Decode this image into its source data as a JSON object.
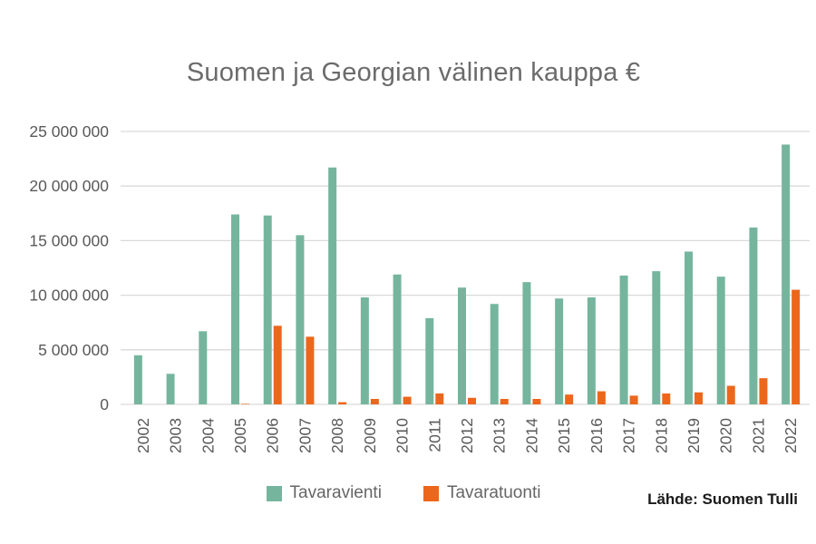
{
  "title": "Suomen ja Georgian välinen kauppa €",
  "source": "Lähde: Suomen Tulli",
  "colors": {
    "export_green": "#75b59e",
    "import_orange": "#ec671c",
    "gridline": "#d9d9d9",
    "axis_text": "#595959",
    "title_text": "#6b6b6b",
    "legend_text": "#666666",
    "source_text": "#1a1a1a",
    "background": "#ffffff"
  },
  "chart_data": {
    "type": "bar",
    "title": "Suomen ja Georgian välinen kauppa €",
    "categories": [
      "2002",
      "2003",
      "2004",
      "2005",
      "2006",
      "2007",
      "2008",
      "2009",
      "2010",
      "2011",
      "2012",
      "2013",
      "2014",
      "2015",
      "2016",
      "2017",
      "2018",
      "2019",
      "2020",
      "2021",
      "2022"
    ],
    "series": [
      {
        "name": "Tavaravienti",
        "color": "#75b59e",
        "values": [
          4500000,
          2800000,
          6700000,
          17400000,
          17300000,
          15500000,
          21700000,
          9800000,
          11900000,
          7900000,
          10700000,
          9200000,
          11200000,
          9700000,
          9800000,
          11800000,
          12200000,
          14000000,
          11700000,
          16200000,
          23800000
        ]
      },
      {
        "name": "Tavaratuonti",
        "color": "#ec671c",
        "values": [
          0,
          0,
          0,
          50000,
          7200000,
          6200000,
          200000,
          500000,
          700000,
          1000000,
          600000,
          500000,
          500000,
          900000,
          1200000,
          800000,
          1000000,
          1100000,
          1700000,
          2400000,
          10500000
        ]
      }
    ],
    "xlabel": "",
    "ylabel": "",
    "ylim": [
      0,
      25000000
    ],
    "grid": true,
    "legend_position": "bottom",
    "y_ticks": {
      "values": [
        0,
        5000000,
        10000000,
        15000000,
        20000000,
        25000000
      ],
      "labels": [
        "0",
        "5 000 000",
        "10 000 000",
        "15 000 000",
        "20 000 000",
        "25 000 000"
      ]
    },
    "source": "Lähde: Suomen Tulli"
  }
}
